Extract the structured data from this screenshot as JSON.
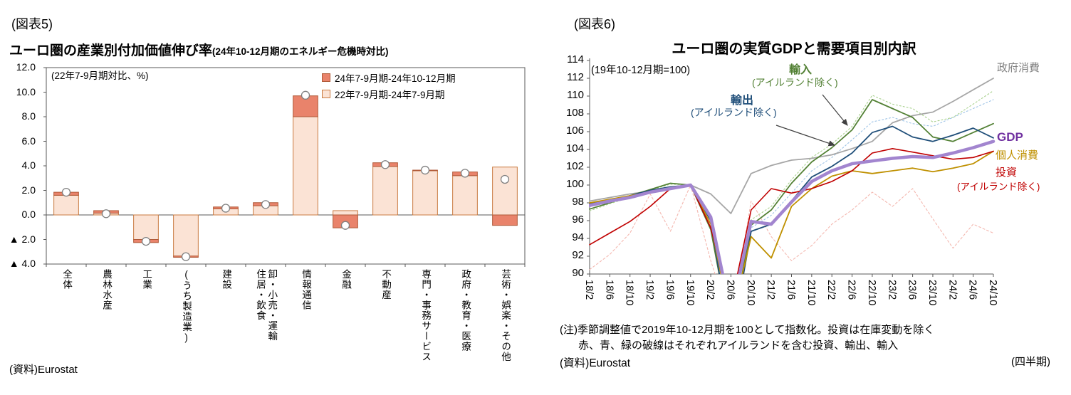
{
  "fig5": {
    "tag": "(図表5)",
    "source": "(資料)Eurostat"
  },
  "fig6": {
    "tag": "(図表6)",
    "note_line1": "(注)季節調整値で2019年10-12月期を100として指数化。投資は在庫変動を除く",
    "note_line2": "赤、青、緑の破線はそれぞれアイルランドを含む投資、輸出、輸入",
    "source": "(資料)Eurostat",
    "quarter_label": "(四半期)"
  },
  "chart_data": [
    {
      "type": "bar",
      "title": "ユーロ圏の産業別付加価値伸び率",
      "title_suffix": "(24年10-12月期のエネルギー危機時対比)",
      "unit_note": "(22年7-9月期対比、%)",
      "ylim": [
        -4,
        12
      ],
      "yticks": [
        {
          "v": 12,
          "label": "12.0"
        },
        {
          "v": 10,
          "label": "10.0"
        },
        {
          "v": 8,
          "label": "8.0"
        },
        {
          "v": 6,
          "label": "6.0"
        },
        {
          "v": 4,
          "label": "4.0"
        },
        {
          "v": 2,
          "label": "2.0"
        },
        {
          "v": 0,
          "label": "0.0"
        },
        {
          "v": -2,
          "label": "▲ 2.0"
        },
        {
          "v": -4,
          "label": "▲ 4.0"
        }
      ],
      "legend": [
        {
          "label": "24年7-9月期-24年10-12月期",
          "color": "#E9836B",
          "stroke": "#B05A38"
        },
        {
          "label": "22年7-9月期-24年7-9月期",
          "color": "#FBE3D5",
          "stroke": "#C9793F"
        }
      ],
      "categories": [
        "全体",
        "農林水産",
        "工業",
        "(うち製造業)",
        "建設",
        "卸・小売・運輸\n住居・飲食",
        "情報通信",
        "金融",
        "不動産",
        "専門・事務サービス",
        "政府・教育・医療",
        "芸術・娯楽・その他"
      ],
      "series": {
        "light_22q3_to_24q3": [
          1.6,
          0.15,
          -2.0,
          -3.35,
          0.5,
          0.75,
          8.0,
          0.35,
          3.95,
          3.6,
          3.2,
          3.9
        ],
        "dark_24q3_to_24q4": [
          [
            1.6,
            1.85
          ],
          [
            0.15,
            0.35
          ],
          [
            -2.0,
            -2.25
          ],
          [
            -3.35,
            -3.45
          ],
          [
            0.5,
            0.65
          ],
          [
            0.75,
            1.0
          ],
          [
            8.0,
            9.7
          ],
          [
            0,
            -1.05
          ],
          [
            3.95,
            4.25
          ],
          [
            3.6,
            3.65
          ],
          [
            3.2,
            3.5
          ],
          [
            0,
            -0.85
          ]
        ],
        "circles_total": [
          1.85,
          0.1,
          -2.15,
          -3.4,
          0.55,
          0.85,
          9.75,
          -0.85,
          4.1,
          3.65,
          3.4,
          2.9
        ]
      },
      "colors": {
        "light": "#FBE3D5",
        "dark": "#E9836B",
        "stroke": "#C9793F",
        "dark_stroke": "#B05A38",
        "marker_stroke": "#7F7F7F",
        "axis": "#595959"
      }
    },
    {
      "type": "line",
      "title": "ユーロ圏の実質GDPと需要項目別内訳",
      "index_note": "(19年10-12月期=100)",
      "ylim": [
        90,
        114
      ],
      "ytick_step": 2,
      "x": [
        "18/2",
        "18/6",
        "18/10",
        "19/2",
        "19/6",
        "19/10",
        "20/2",
        "20/6",
        "20/10",
        "21/2",
        "21/6",
        "21/10",
        "22/2",
        "22/6",
        "22/10",
        "23/2",
        "23/6",
        "23/10",
        "24/2",
        "24/6",
        "24/10"
      ],
      "series": [
        {
          "key": "invest-incl-ireland",
          "name": "投資(アイルランド含む・破線)",
          "color": "#F4B8B0",
          "width": 1.1,
          "dash": "3 3",
          "values": [
            90.5,
            92.2,
            94.6,
            99.0,
            94.8,
            100.0,
            91.5,
            84.5,
            98.2,
            94.2,
            91.5,
            93.2,
            95.6,
            97.2,
            99.2,
            97.6,
            99.6,
            96.2,
            92.9,
            95.6,
            94.6
          ]
        },
        {
          "key": "export-incl-ireland",
          "name": "輸出(アイルランド含む・破線)",
          "color": "#9DC3E6",
          "width": 1.1,
          "dash": "2 3",
          "values": [
            97.6,
            98.1,
            98.6,
            99.3,
            99.7,
            100.0,
            96.3,
            84.0,
            95.2,
            96.6,
            99.1,
            101.6,
            103.1,
            105.1,
            107.1,
            107.6,
            106.9,
            106.6,
            107.6,
            108.6,
            109.6
          ]
        },
        {
          "key": "import-incl-ireland",
          "name": "輸入(アイルランド含む・破線)",
          "color": "#A9D18E",
          "width": 1.1,
          "dash": "2 3",
          "values": [
            97.1,
            97.9,
            98.6,
            99.4,
            100.1,
            100.0,
            95.6,
            84.6,
            96.1,
            97.6,
            100.6,
            103.1,
            104.6,
            106.6,
            110.1,
            109.1,
            108.6,
            107.1,
            107.6,
            109.1,
            110.6
          ]
        },
        {
          "key": "gov-consumption",
          "name": "政府消費",
          "color": "#A6A6A6",
          "width": 1.8,
          "dash": null,
          "values": [
            98.2,
            98.6,
            99.0,
            99.3,
            99.7,
            100.0,
            99.0,
            96.8,
            101.3,
            102.2,
            102.8,
            103.0,
            103.4,
            104.1,
            104.9,
            107.0,
            107.8,
            108.2,
            109.4,
            110.7,
            112.0
          ]
        },
        {
          "key": "import-ex-ireland",
          "name": "輸入(アイルランド除く)",
          "color": "#538135",
          "width": 1.8,
          "dash": null,
          "values": [
            97.3,
            98.0,
            98.8,
            99.5,
            100.2,
            100.0,
            95.0,
            83.0,
            95.5,
            97.2,
            100.2,
            102.6,
            104.2,
            106.2,
            109.6,
            108.6,
            107.6,
            105.4,
            104.9,
            105.9,
            106.9
          ]
        },
        {
          "key": "export-ex-ireland",
          "name": "輸出(アイルランド除く)",
          "color": "#1F4E79",
          "width": 1.8,
          "dash": null,
          "values": [
            97.9,
            98.3,
            98.8,
            99.4,
            99.8,
            100.0,
            96.0,
            82.0,
            94.8,
            95.6,
            98.2,
            100.9,
            102.1,
            103.6,
            105.9,
            106.6,
            105.4,
            104.9,
            105.6,
            106.4,
            105.3
          ]
        },
        {
          "key": "personal-consumption",
          "name": "個人消費",
          "color": "#BF9000",
          "width": 1.8,
          "dash": null,
          "values": [
            98.0,
            98.4,
            98.8,
            99.2,
            99.6,
            100.0,
            95.6,
            84.5,
            94.2,
            91.8,
            97.6,
            99.6,
            101.0,
            101.6,
            101.3,
            101.6,
            101.9,
            101.5,
            101.9,
            102.4,
            103.8
          ]
        },
        {
          "key": "invest-ex-ireland",
          "name": "投資(アイルランド除く)",
          "color": "#C00000",
          "width": 1.6,
          "dash": null,
          "values": [
            93.3,
            94.6,
            95.9,
            97.6,
            99.6,
            100.0,
            95.2,
            86.5,
            97.2,
            99.6,
            99.1,
            99.6,
            100.4,
            101.6,
            103.6,
            104.1,
            103.7,
            103.3,
            102.9,
            103.1,
            103.8
          ]
        },
        {
          "key": "gdp",
          "name": "GDP",
          "color": "#A285CF",
          "width": 4.5,
          "dash": null,
          "values": [
            97.7,
            98.2,
            98.6,
            99.2,
            99.6,
            100.0,
            96.4,
            85.5,
            95.9,
            95.6,
            98.1,
            100.4,
            101.6,
            102.4,
            102.7,
            103.0,
            103.2,
            103.1,
            103.6,
            104.2,
            104.9
          ]
        }
      ],
      "annotations": {
        "import": {
          "label": "輸入",
          "sub": "(アイルランド除く)",
          "color": "#538135"
        },
        "export": {
          "label": "輸出",
          "sub": "(アイルランド除く)",
          "color": "#1F4E79"
        },
        "arrow_color": "#404040",
        "right": {
          "gov": {
            "text": "政府消費",
            "color": "#808080"
          },
          "gdp": {
            "text": "GDP",
            "color": "#7030A0"
          },
          "consumption": {
            "text": "個人消費",
            "color": "#BF9000"
          },
          "investment": {
            "text": "投資",
            "color": "#C00000"
          },
          "investment_sub": {
            "text": "(アイルランド除く)",
            "color": "#C00000"
          }
        }
      },
      "layout_hints": {
        "grid": false,
        "legend_position": "inline-annotations"
      }
    }
  ]
}
